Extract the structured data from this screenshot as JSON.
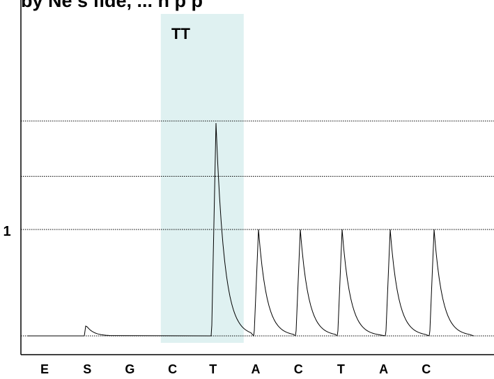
{
  "chart_data": {
    "type": "line",
    "title": "by Ne s fide, ... h p p",
    "xlabel": "",
    "ylabel": "",
    "categories": [
      "E",
      "S",
      "G",
      "C",
      "T",
      "A",
      "C",
      "T",
      "A",
      "C"
    ],
    "y_tick_labels": [
      "1"
    ],
    "ylim": [
      0,
      2.05
    ],
    "grid": true,
    "annotations": [
      {
        "text": "TT",
        "category_index": 4,
        "note": "highlighted dispensation"
      }
    ],
    "highlight": {
      "category_index": 4,
      "color": "#dff1f1"
    },
    "series": [
      {
        "color": "#000000",
        "peaks": [
          {
            "category_index": 0,
            "value": 0
          },
          {
            "category_index": 1,
            "value": 0.13
          },
          {
            "category_index": 2,
            "value": 0
          },
          {
            "category_index": 3,
            "value": 0
          },
          {
            "category_index": 4,
            "value": 2.0
          },
          {
            "category_index": 5,
            "value": 1.0
          },
          {
            "category_index": 6,
            "value": 1.0
          },
          {
            "category_index": 7,
            "value": 1.0
          },
          {
            "category_index": 8,
            "value": 1.0
          },
          {
            "category_index": 9,
            "value": 1.0
          }
        ]
      }
    ]
  }
}
